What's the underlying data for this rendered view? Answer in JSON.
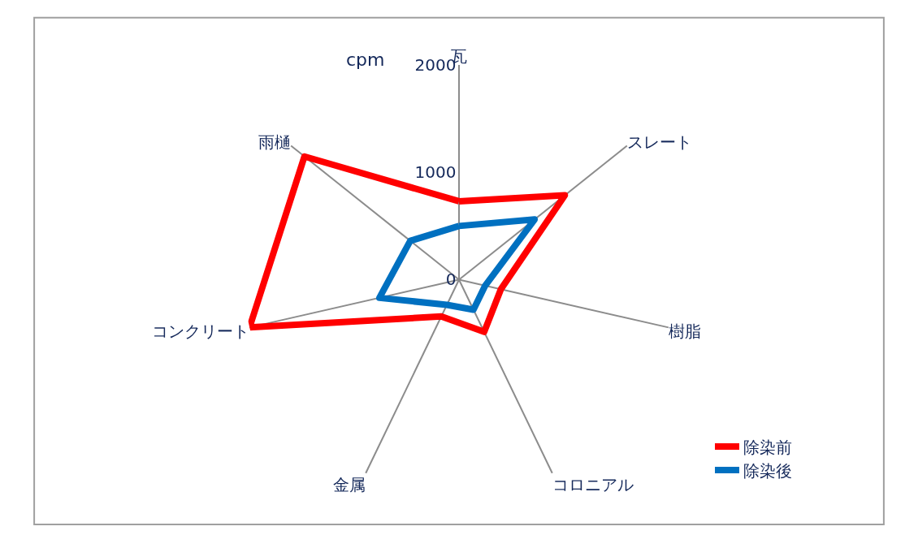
{
  "chart_data": {
    "type": "radar",
    "ylabel": "cpm",
    "categories": [
      "瓦",
      "スレート",
      "樹脂",
      "コロニアル",
      "金属",
      "コンクリート",
      "雨樋"
    ],
    "series": [
      {
        "name": "除染前",
        "color": "#ff0000",
        "values": [
          730,
          1260,
          400,
          540,
          380,
          2000,
          1840
        ]
      },
      {
        "name": "除染後",
        "color": "#0070c0",
        "values": [
          500,
          900,
          250,
          310,
          260,
          760,
          580
        ]
      }
    ],
    "ylim": [
      0,
      2000
    ],
    "yticks": [
      0,
      1000,
      2000
    ],
    "grid": "x",
    "legend": "bottom right",
    "marker": "none",
    "line_style": "solid"
  }
}
